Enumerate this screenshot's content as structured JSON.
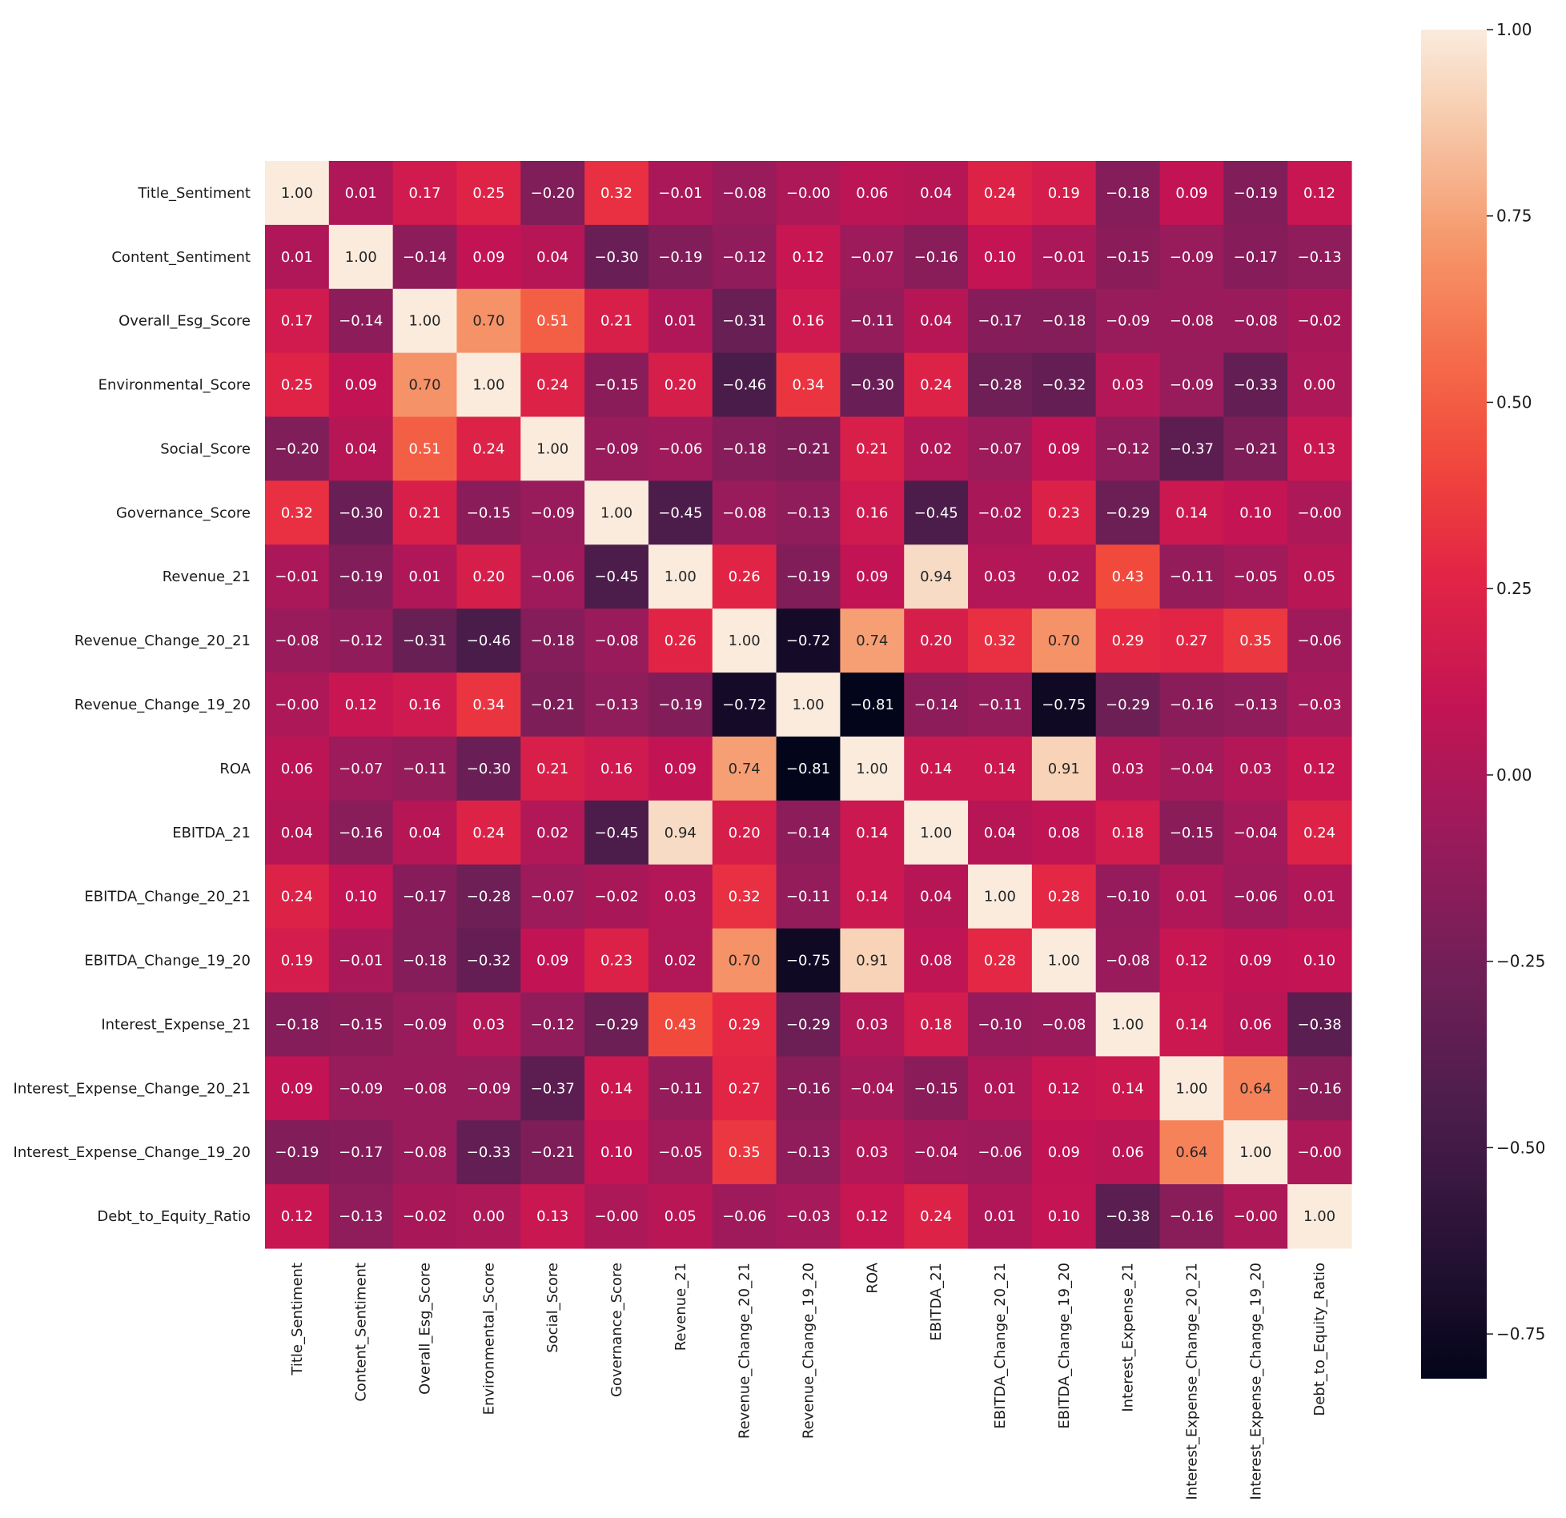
{
  "chart_data": {
    "type": "heatmap",
    "title": "",
    "xlabel": "",
    "ylabel": "",
    "colormap": "rocket",
    "vmin": -0.81,
    "vmax": 1.0,
    "labels": [
      "Title_Sentiment",
      "Content_Sentiment",
      "Overall_Esg_Score",
      "Environmental_Score",
      "Social_Score",
      "Governance_Score",
      "Revenue_21",
      "Revenue_Change_20_21",
      "Revenue_Change_19_20",
      "ROA",
      "EBITDA_21",
      "EBITDA_Change_20_21",
      "EBITDA_Change_19_20",
      "Interest_Expense_21",
      "Interest_Expense_Change_20_21",
      "Interest_Expense_Change_19_20",
      "Debt_to_Equity_Ratio"
    ],
    "values": [
      [
        1.0,
        0.01,
        0.17,
        0.25,
        -0.2,
        0.32,
        -0.01,
        -0.08,
        -0.0,
        0.06,
        0.04,
        0.24,
        0.19,
        -0.18,
        0.09,
        -0.19,
        0.12
      ],
      [
        0.01,
        1.0,
        -0.14,
        0.09,
        0.04,
        -0.3,
        -0.19,
        -0.12,
        0.12,
        -0.07,
        -0.16,
        0.1,
        -0.01,
        -0.15,
        -0.09,
        -0.17,
        -0.13
      ],
      [
        0.17,
        -0.14,
        1.0,
        0.7,
        0.51,
        0.21,
        0.01,
        -0.31,
        0.16,
        -0.11,
        0.04,
        -0.17,
        -0.18,
        -0.09,
        -0.08,
        -0.08,
        -0.02
      ],
      [
        0.25,
        0.09,
        0.7,
        1.0,
        0.24,
        -0.15,
        0.2,
        -0.46,
        0.34,
        -0.3,
        0.24,
        -0.28,
        -0.32,
        0.03,
        -0.09,
        -0.33,
        0.0
      ],
      [
        -0.2,
        0.04,
        0.51,
        0.24,
        1.0,
        -0.09,
        -0.06,
        -0.18,
        -0.21,
        0.21,
        0.02,
        -0.07,
        0.09,
        -0.12,
        -0.37,
        -0.21,
        0.13
      ],
      [
        0.32,
        -0.3,
        0.21,
        -0.15,
        -0.09,
        1.0,
        -0.45,
        -0.08,
        -0.13,
        0.16,
        -0.45,
        -0.02,
        0.23,
        -0.29,
        0.14,
        0.1,
        -0.0
      ],
      [
        -0.01,
        -0.19,
        0.01,
        0.2,
        -0.06,
        -0.45,
        1.0,
        0.26,
        -0.19,
        0.09,
        0.94,
        0.03,
        0.02,
        0.43,
        -0.11,
        -0.05,
        0.05
      ],
      [
        -0.08,
        -0.12,
        -0.31,
        -0.46,
        -0.18,
        -0.08,
        0.26,
        1.0,
        -0.72,
        0.74,
        0.2,
        0.32,
        0.7,
        0.29,
        0.27,
        0.35,
        -0.06
      ],
      [
        -0.0,
        0.12,
        0.16,
        0.34,
        -0.21,
        -0.13,
        -0.19,
        -0.72,
        1.0,
        -0.81,
        -0.14,
        -0.11,
        -0.75,
        -0.29,
        -0.16,
        -0.13,
        -0.03
      ],
      [
        0.06,
        -0.07,
        -0.11,
        -0.3,
        0.21,
        0.16,
        0.09,
        0.74,
        -0.81,
        1.0,
        0.14,
        0.14,
        0.91,
        0.03,
        -0.04,
        0.03,
        0.12
      ],
      [
        0.04,
        -0.16,
        0.04,
        0.24,
        0.02,
        -0.45,
        0.94,
        0.2,
        -0.14,
        0.14,
        1.0,
        0.04,
        0.08,
        0.18,
        -0.15,
        -0.04,
        0.24
      ],
      [
        0.24,
        0.1,
        -0.17,
        -0.28,
        -0.07,
        -0.02,
        0.03,
        0.32,
        -0.11,
        0.14,
        0.04,
        1.0,
        0.28,
        -0.1,
        0.01,
        -0.06,
        0.01
      ],
      [
        0.19,
        -0.01,
        -0.18,
        -0.32,
        0.09,
        0.23,
        0.02,
        0.7,
        -0.75,
        0.91,
        0.08,
        0.28,
        1.0,
        -0.08,
        0.12,
        0.09,
        0.1
      ],
      [
        -0.18,
        -0.15,
        -0.09,
        0.03,
        -0.12,
        -0.29,
        0.43,
        0.29,
        -0.29,
        0.03,
        0.18,
        -0.1,
        -0.08,
        1.0,
        0.14,
        0.06,
        -0.38
      ],
      [
        0.09,
        -0.09,
        -0.08,
        -0.09,
        -0.37,
        0.14,
        -0.11,
        0.27,
        -0.16,
        -0.04,
        -0.15,
        0.01,
        0.12,
        0.14,
        1.0,
        0.64,
        -0.16
      ],
      [
        -0.19,
        -0.17,
        -0.08,
        -0.33,
        -0.21,
        0.1,
        -0.05,
        0.35,
        -0.13,
        0.03,
        -0.04,
        -0.06,
        0.09,
        0.06,
        0.64,
        1.0,
        -0.0
      ],
      [
        0.12,
        -0.13,
        -0.02,
        0.0,
        0.13,
        -0.0,
        0.05,
        -0.06,
        -0.03,
        0.12,
        0.24,
        0.01,
        0.1,
        -0.38,
        -0.16,
        -0.0,
        1.0
      ]
    ],
    "colorbar": {
      "ticks": [
        1.0,
        0.75,
        0.5,
        0.25,
        0.0,
        -0.25,
        -0.5,
        -0.75
      ],
      "tick_labels": [
        "1.00",
        "0.75",
        "0.50",
        "0.25",
        "0.00",
        "−0.25",
        "−0.50",
        "−0.75"
      ]
    },
    "grid": false,
    "legend": "colorbar-right"
  }
}
